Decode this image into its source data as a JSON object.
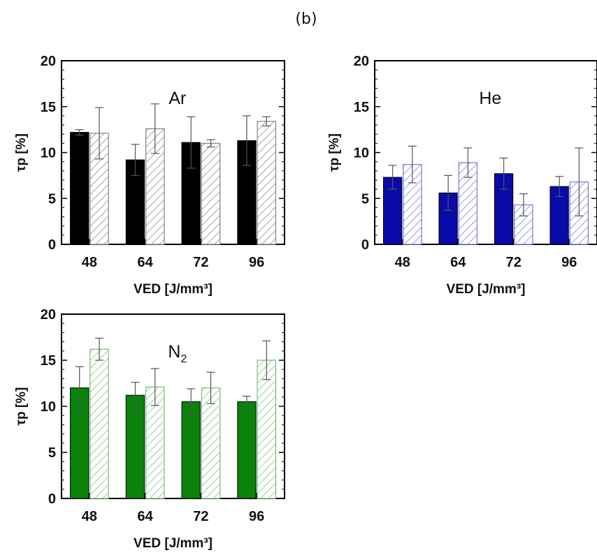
{
  "figure": {
    "panel_label": "(b)"
  },
  "chart_data": [
    {
      "type": "bar",
      "annotation": "Ar",
      "annotation_sub": "",
      "xlabel": "VED [J/mm³]",
      "ylabel": "τp [%]",
      "ylim": [
        0,
        20
      ],
      "yticks": [
        0,
        5,
        10,
        15,
        20
      ],
      "grid": false,
      "legend": "none",
      "categories": [
        "48",
        "64",
        "72",
        "96"
      ],
      "colors": {
        "solid": "#000000",
        "hatch": "#8c8c8c"
      },
      "series": [
        {
          "style": "solid",
          "values": [
            12.2,
            9.2,
            11.1,
            11.3
          ],
          "errors": [
            0.3,
            1.7,
            2.8,
            2.7
          ]
        },
        {
          "style": "hatched",
          "values": [
            12.1,
            12.6,
            11.0,
            13.4
          ],
          "errors": [
            2.8,
            2.7,
            0.4,
            0.5
          ]
        }
      ]
    },
    {
      "type": "bar",
      "annotation": "He",
      "annotation_sub": "",
      "xlabel": "VED [J/mm³]",
      "ylabel": "τp [%]",
      "ylim": [
        0,
        20
      ],
      "yticks": [
        0,
        5,
        10,
        15,
        20
      ],
      "grid": false,
      "legend": "none",
      "categories": [
        "48",
        "64",
        "72",
        "96"
      ],
      "colors": {
        "solid": "#0a0aa8",
        "hatch": "#8080dd"
      },
      "series": [
        {
          "style": "solid",
          "values": [
            7.3,
            5.6,
            7.7,
            6.3
          ],
          "errors": [
            1.3,
            1.9,
            1.7,
            1.1
          ]
        },
        {
          "style": "hatched",
          "values": [
            8.7,
            8.9,
            4.3,
            6.8
          ],
          "errors": [
            2.0,
            1.6,
            1.2,
            3.7
          ]
        }
      ]
    },
    {
      "type": "bar",
      "annotation": "N",
      "annotation_sub": "2",
      "xlabel": "VED [J/mm³]",
      "ylabel": "τp [%]",
      "ylim": [
        0,
        20
      ],
      "yticks": [
        0,
        5,
        10,
        15,
        20
      ],
      "grid": false,
      "legend": "none",
      "categories": [
        "48",
        "64",
        "72",
        "96"
      ],
      "colors": {
        "solid": "#0a830a",
        "hatch": "#80c080"
      },
      "series": [
        {
          "style": "solid",
          "values": [
            12.0,
            11.2,
            10.5,
            10.5
          ],
          "errors": [
            2.3,
            1.4,
            1.4,
            0.6
          ]
        },
        {
          "style": "hatched",
          "values": [
            16.2,
            12.1,
            12.0,
            15.0
          ],
          "errors": [
            1.2,
            2.0,
            1.7,
            2.1
          ]
        }
      ]
    }
  ]
}
